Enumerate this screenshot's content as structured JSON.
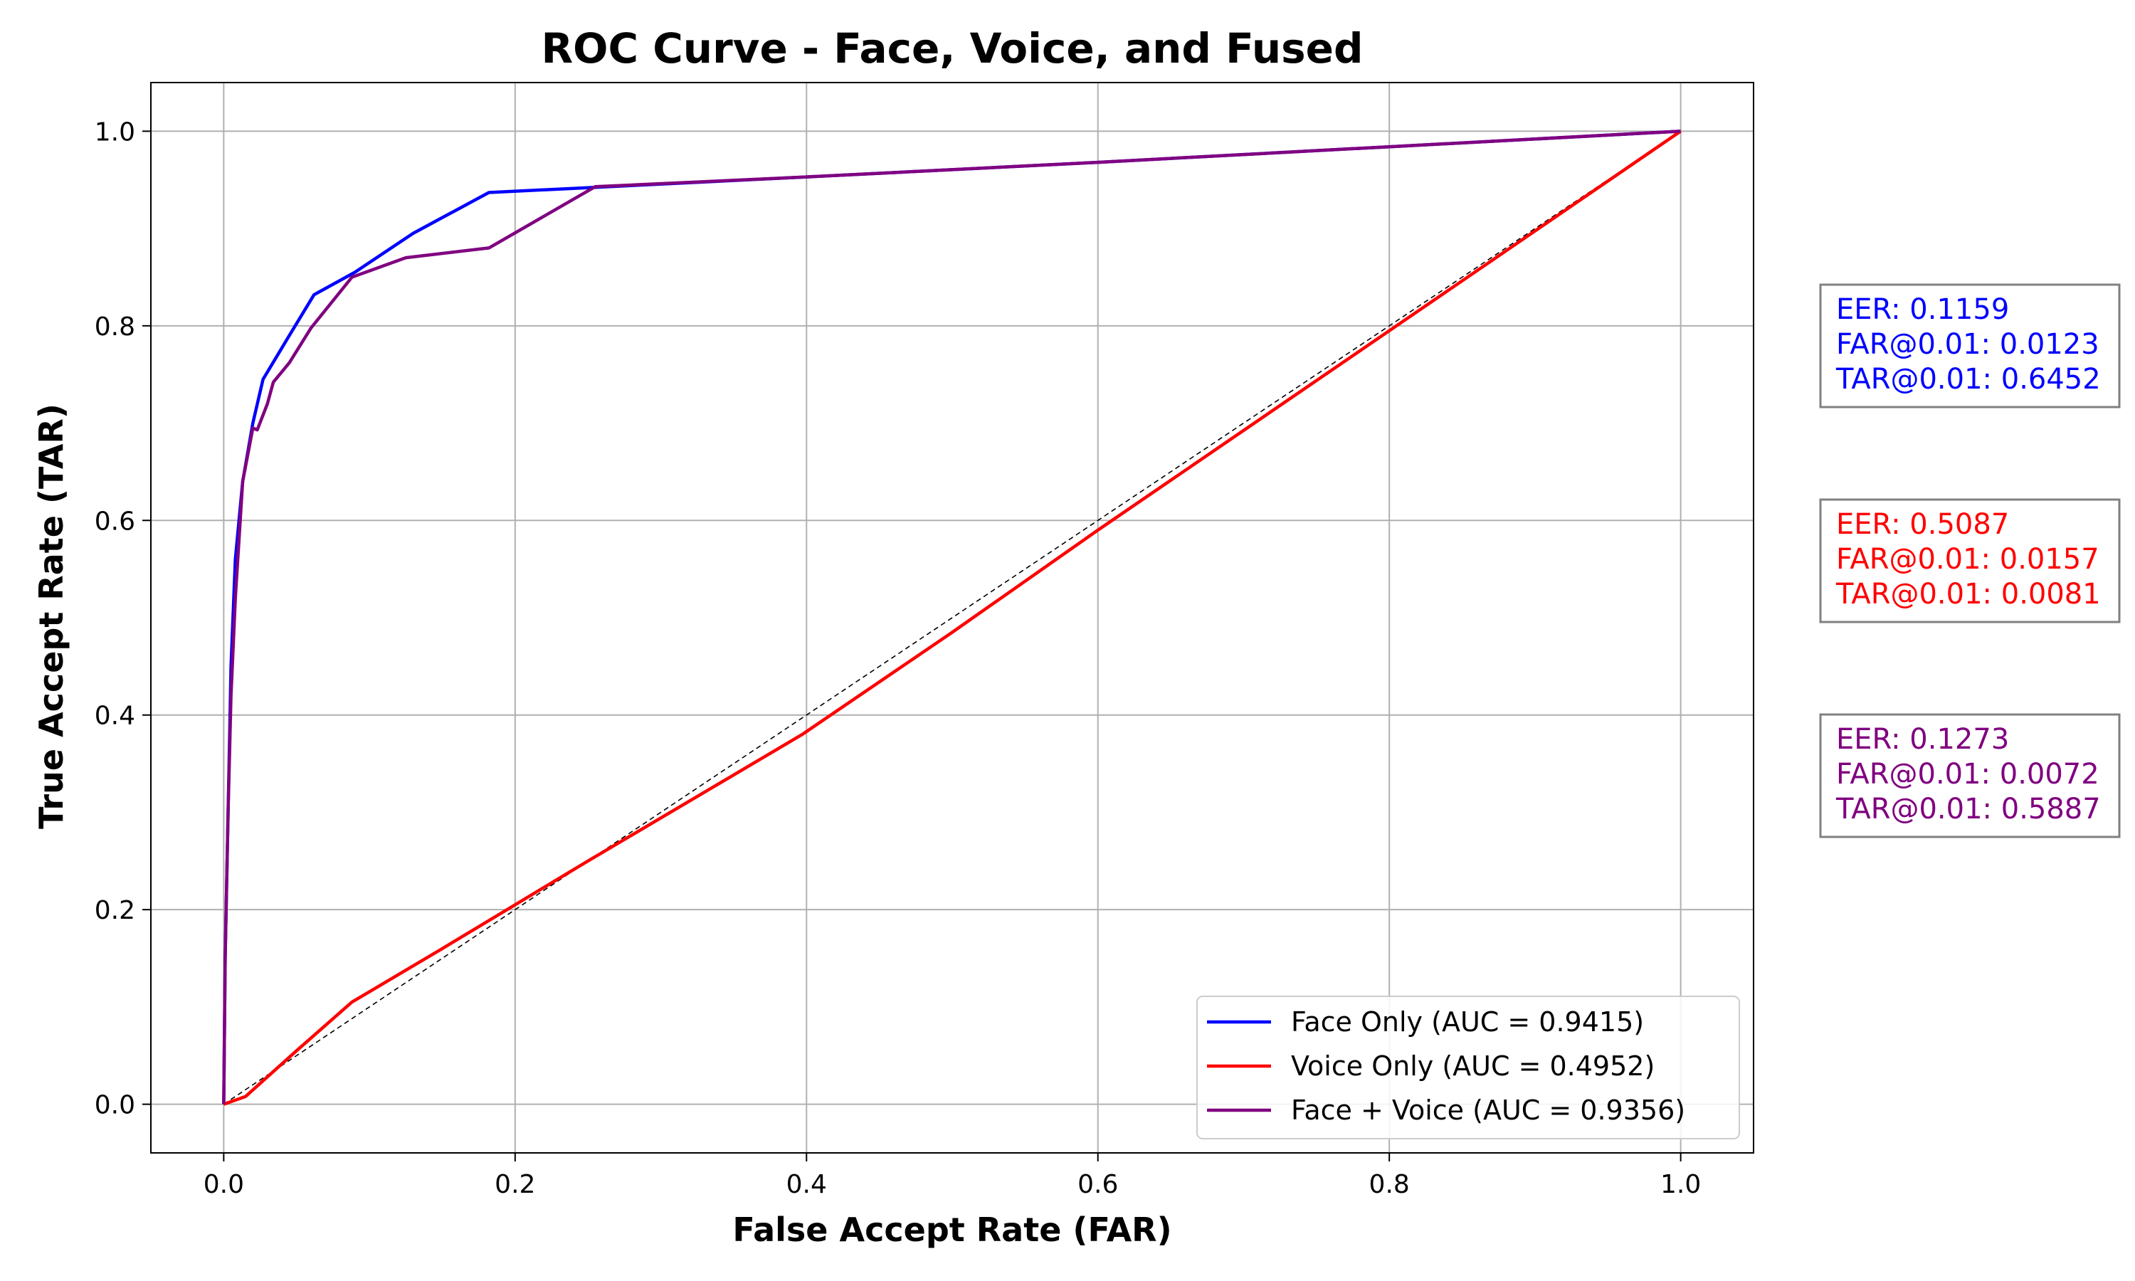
{
  "chart_data": {
    "type": "line",
    "title": "ROC Curve - Face, Voice, and Fused",
    "xlabel": "False Accept Rate (FAR)",
    "ylabel": "True Accept Rate (TAR)",
    "xlim": [
      -0.05,
      1.05
    ],
    "ylim": [
      -0.05,
      1.05
    ],
    "xticks": [
      "0.0",
      "0.2",
      "0.4",
      "0.6",
      "0.8",
      "1.0"
    ],
    "yticks": [
      "0.0",
      "0.2",
      "0.4",
      "0.6",
      "0.8",
      "1.0"
    ],
    "grid": true,
    "legend_position": "bottom-right",
    "diagonal_reference": {
      "x": [
        0,
        1
      ],
      "y": [
        0,
        1
      ],
      "color": "#000000",
      "style": "dashed"
    },
    "series": [
      {
        "name": "Face Only (AUC = 0.9415)",
        "color": "#0000ff",
        "x": [
          0,
          0.001,
          0.003,
          0.005,
          0.008,
          0.013,
          0.02,
          0.027,
          0.035,
          0.045,
          0.062,
          0.09,
          0.13,
          0.182,
          0.25,
          0.4,
          0.6,
          0.8,
          1.0
        ],
        "y": [
          0,
          0.15,
          0.3,
          0.45,
          0.56,
          0.64,
          0.7,
          0.745,
          0.765,
          0.79,
          0.832,
          0.855,
          0.895,
          0.937,
          0.942,
          0.953,
          0.968,
          0.984,
          1.0
        ]
      },
      {
        "name": "Voice Only (AUC = 0.4952)",
        "color": "#ff0000",
        "x": [
          0,
          0.015,
          0.05,
          0.088,
          0.15,
          0.25,
          0.397,
          0.5,
          0.6,
          0.8,
          1.0
        ],
        "y": [
          0,
          0.008,
          0.055,
          0.105,
          0.16,
          0.25,
          0.38,
          0.485,
          0.59,
          0.795,
          1.0
        ]
      },
      {
        "name": "Face + Voice (AUC = 0.9356)",
        "color": "#800080",
        "x": [
          0,
          0.001,
          0.003,
          0.005,
          0.008,
          0.013,
          0.02,
          0.023,
          0.03,
          0.034,
          0.045,
          0.06,
          0.088,
          0.125,
          0.182,
          0.255,
          0.4,
          0.6,
          0.8,
          1.0
        ],
        "y": [
          0,
          0.15,
          0.3,
          0.42,
          0.52,
          0.64,
          0.695,
          0.693,
          0.72,
          0.742,
          0.762,
          0.798,
          0.85,
          0.87,
          0.88,
          0.943,
          0.953,
          0.968,
          0.984,
          1.0
        ]
      }
    ],
    "metric_boxes": [
      {
        "color": "#0000ff",
        "lines": [
          "EER: 0.1159",
          "FAR@0.01: 0.0123",
          "TAR@0.01: 0.6452"
        ]
      },
      {
        "color": "#ff0000",
        "lines": [
          "EER: 0.5087",
          "FAR@0.01: 0.0157",
          "TAR@0.01: 0.0081"
        ]
      },
      {
        "color": "#800080",
        "lines": [
          "EER: 0.1273",
          "FAR@0.01: 0.0072",
          "TAR@0.01: 0.5887"
        ]
      }
    ]
  }
}
